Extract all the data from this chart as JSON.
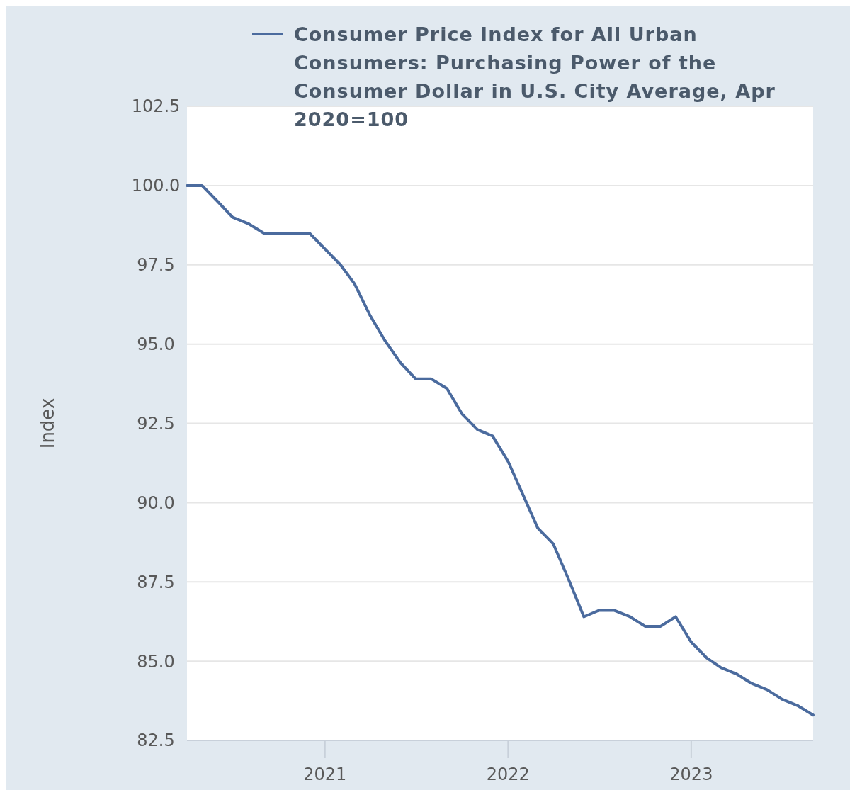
{
  "chart_data": {
    "type": "line",
    "ylabel": "Index",
    "x": [
      "2020-04",
      "2020-05",
      "2020-06",
      "2020-07",
      "2020-08",
      "2020-09",
      "2020-10",
      "2020-11",
      "2020-12",
      "2021-01",
      "2021-02",
      "2021-03",
      "2021-04",
      "2021-05",
      "2021-06",
      "2021-07",
      "2021-08",
      "2021-09",
      "2021-10",
      "2021-11",
      "2021-12",
      "2022-01",
      "2022-02",
      "2022-03",
      "2022-04",
      "2022-05",
      "2022-06",
      "2022-07",
      "2022-08",
      "2022-09",
      "2022-10",
      "2022-11",
      "2022-12",
      "2023-01",
      "2023-02",
      "2023-03",
      "2023-04",
      "2023-05",
      "2023-06",
      "2023-07",
      "2023-08",
      "2023-09"
    ],
    "series": [
      {
        "name": "Consumer Price Index for All Urban Consumers: Purchasing Power of the Consumer Dollar in U.S. City Average, Apr 2020=100",
        "color": "#4b6b9e",
        "values": [
          100.0,
          100.0,
          99.5,
          99.0,
          98.8,
          98.5,
          98.5,
          98.5,
          98.5,
          98.0,
          97.5,
          96.9,
          95.9,
          95.1,
          94.4,
          93.9,
          93.9,
          93.6,
          92.8,
          92.3,
          92.1,
          91.3,
          90.2,
          89.2,
          88.7,
          87.6,
          86.4,
          86.6,
          86.6,
          86.4,
          86.1,
          86.1,
          86.4,
          85.6,
          85.1,
          84.8,
          84.6,
          84.3,
          84.1,
          83.8,
          83.6,
          83.3
        ]
      }
    ],
    "xlim": [
      "2020-04",
      "2023-09"
    ],
    "xticks": [
      {
        "value": "2021-01",
        "label": "2021"
      },
      {
        "value": "2022-01",
        "label": "2022"
      },
      {
        "value": "2023-01",
        "label": "2023"
      }
    ],
    "ylim": [
      82.5,
      102.5
    ],
    "yticks": [
      {
        "value": 82.5,
        "label": "82.5"
      },
      {
        "value": 85,
        "label": "85.0"
      },
      {
        "value": 87.5,
        "label": "87.5"
      },
      {
        "value": 90,
        "label": "90.0"
      },
      {
        "value": 92.5,
        "label": "92.5"
      },
      {
        "value": 95,
        "label": "95.0"
      },
      {
        "value": 97.5,
        "label": "97.5"
      },
      {
        "value": 100,
        "label": "100.0"
      },
      {
        "value": 102.5,
        "label": "102.5"
      }
    ],
    "grid": "y",
    "legend": "top",
    "marker": "none",
    "line_style": "solid"
  }
}
